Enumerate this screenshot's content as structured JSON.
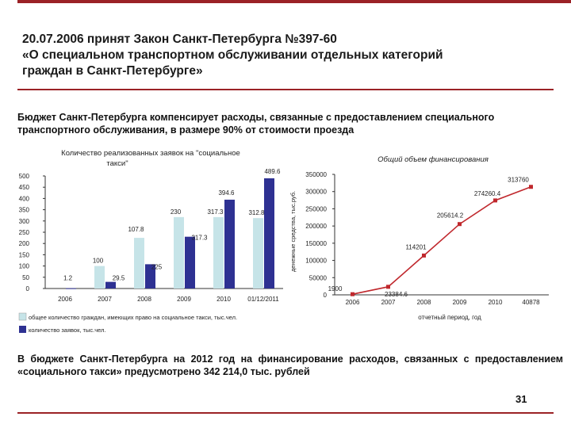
{
  "slide": {
    "title_lines": [
      "20.07.2006 принят Закон Санкт-Петербурга №397-60",
      "«О специальном транспортном обслуживании отдельных категорий",
      "граждан  в Санкт-Петербурге»"
    ],
    "intro": "Бюджет Санкт-Петербурга компенсирует расходы, связанные с предоставлением специального транспортного обслуживания, в размере 90% от стоимости проезда",
    "note": "В бюджете Санкт-Петербурга на 2012 год на финансирование расходов, связанных с предоставлением «социального такси» предусмотрено 342 214,0 тыс. рублей",
    "page_number": "31"
  },
  "colors": {
    "accent": "#9b2226",
    "bar_people": "#c6e4e8",
    "bar_requests": "#2e3192",
    "line": "#c0282d"
  },
  "chart_data": [
    {
      "type": "bar",
      "title": "Количество реализованных заявок на \"социальное такси\"",
      "categories": [
        "2006",
        "2007",
        "2008",
        "2009",
        "2010",
        "01/12/2011"
      ],
      "ylim": [
        0,
        500
      ],
      "yticks": [
        0,
        50,
        100,
        150,
        200,
        250,
        300,
        350,
        400,
        450,
        500
      ],
      "grid": false,
      "legend": "bottom",
      "series": [
        {
          "name": "общее количество граждан, имеющих право на социальное такси, тыс.чел.",
          "values": [
            null,
            100,
            225,
            317.3,
            317.3,
            312.8
          ]
        },
        {
          "name": "количество заявок, тыс.чел.",
          "values": [
            1.2,
            29.5,
            107.8,
            230,
            394.6,
            489.6
          ]
        }
      ],
      "data_labels": [
        "1.2",
        "100",
        "29.5",
        "107.8",
        "225",
        "230",
        "317.3",
        "317.3",
        "394.6",
        "312.8",
        "489.6"
      ]
    },
    {
      "type": "line",
      "title": "Общий объем финансирования",
      "xlabel": "отчетный период, год",
      "ylabel": "денежные средства, тыс.руб.",
      "categories": [
        "2006",
        "2007",
        "2008",
        "2009",
        "2010",
        "40878"
      ],
      "ylim": [
        0,
        350000
      ],
      "yticks": [
        0,
        50000,
        100000,
        150000,
        200000,
        250000,
        300000,
        350000
      ],
      "grid": false,
      "series": [
        {
          "values": [
            1900,
            23384.6,
            114201,
            205614.2,
            274260.4,
            313760
          ],
          "labels": [
            "1900",
            "23384.6",
            "114201",
            "205614.2",
            "274260.4",
            "313760"
          ]
        }
      ]
    }
  ]
}
